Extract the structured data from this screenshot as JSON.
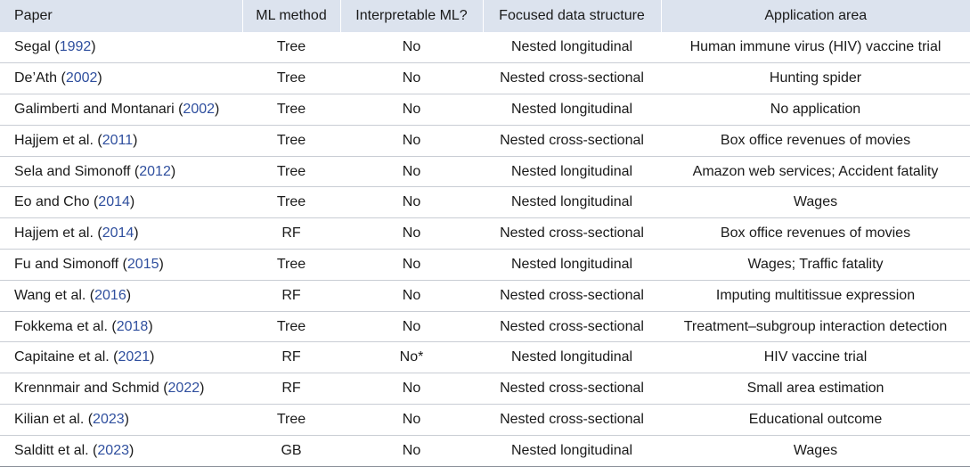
{
  "table": {
    "headers": [
      "Paper",
      "ML method",
      "Interpretable ML?",
      "Focused data structure",
      "Application area"
    ],
    "rows": [
      {
        "authors": "Segal",
        "year": "1992",
        "method": "Tree",
        "interpretable": "No",
        "structure": "Nested longitudinal",
        "application": "Human immune virus (HIV) vaccine trial"
      },
      {
        "authors": "De’Ath",
        "year": "2002",
        "method": "Tree",
        "interpretable": "No",
        "structure": "Nested cross-sectional",
        "application": "Hunting spider"
      },
      {
        "authors": "Galimberti and Montanari",
        "year": "2002",
        "method": "Tree",
        "interpretable": "No",
        "structure": "Nested longitudinal",
        "application": "No application"
      },
      {
        "authors": "Hajjem et al.",
        "year": "2011",
        "method": "Tree",
        "interpretable": "No",
        "structure": "Nested cross-sectional",
        "application": "Box office revenues of movies"
      },
      {
        "authors": "Sela and Simonoff",
        "year": "2012",
        "method": "Tree",
        "interpretable": "No",
        "structure": "Nested longitudinal",
        "application": "Amazon web services; Accident fatality"
      },
      {
        "authors": "Eo and Cho",
        "year": "2014",
        "method": "Tree",
        "interpretable": "No",
        "structure": "Nested longitudinal",
        "application": "Wages"
      },
      {
        "authors": "Hajjem et al.",
        "year": "2014",
        "method": "RF",
        "interpretable": "No",
        "structure": "Nested cross-sectional",
        "application": "Box office revenues of movies"
      },
      {
        "authors": "Fu and Simonoff",
        "year": "2015",
        "method": "Tree",
        "interpretable": "No",
        "structure": "Nested longitudinal",
        "application": "Wages; Traffic fatality"
      },
      {
        "authors": "Wang et al.",
        "year": "2016",
        "method": "RF",
        "interpretable": "No",
        "structure": "Nested cross-sectional",
        "application": "Imputing multitissue expression"
      },
      {
        "authors": "Fokkema et al.",
        "year": "2018",
        "method": "Tree",
        "interpretable": "No",
        "structure": "Nested cross-sectional",
        "application": "Treatment–subgroup interaction detection"
      },
      {
        "authors": "Capitaine et al.",
        "year": "2021",
        "method": "RF",
        "interpretable": "No*",
        "structure": "Nested longitudinal",
        "application": "HIV vaccine trial"
      },
      {
        "authors": "Krennmair and Schmid",
        "year": "2022",
        "method": "RF",
        "interpretable": "No",
        "structure": "Nested cross-sectional",
        "application": "Small area estimation"
      },
      {
        "authors": "Kilian et al.",
        "year": "2023",
        "method": "Tree",
        "interpretable": "No",
        "structure": "Nested cross-sectional",
        "application": "Educational outcome"
      },
      {
        "authors": "Salditt et al.",
        "year": "2023",
        "method": "GB",
        "interpretable": "No",
        "structure": "Nested longitudinal",
        "application": "Wages"
      }
    ]
  },
  "colors": {
    "header_bg": "#dce3ee",
    "citation_link": "#2f4f9e",
    "row_rule": "#c9cdd4"
  }
}
